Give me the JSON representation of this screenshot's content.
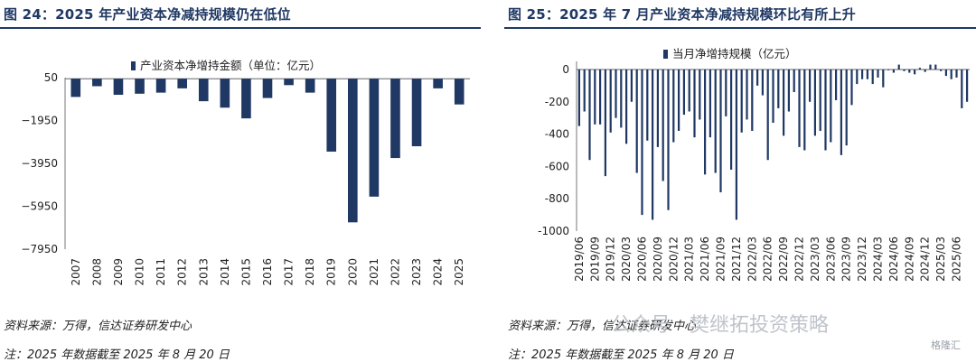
{
  "charts": [
    {
      "title": "图 24：2025 年产业资本净减持规模仍在低位",
      "source": "资料来源：万得，信达证券研发中心",
      "note": "注：2025 年数据截至 2025 年 8 月 20 日"
    },
    {
      "title": "图 25：2025 年 7 月产业资本净减持规模环比有所上升",
      "source": "资料来源：万得，信达证券研发中心",
      "note": "注：2025 年数据截至 2025 年 8 月 20 日"
    }
  ],
  "watermark": {
    "account": "公众号 · 樊继拓投资策略",
    "logo": "格隆汇"
  },
  "colors": {
    "bar": "#1f3864",
    "axis": "#333333",
    "title": "#1f3864"
  },
  "chart_data": [
    {
      "type": "bar",
      "legend": "产业资本净增持金额（单位：亿元）",
      "legend_position": "top-center",
      "categories": [
        "2007",
        "2008",
        "2009",
        "2010",
        "2011",
        "2012",
        "2013",
        "2014",
        "2015",
        "2016",
        "2017",
        "2018",
        "2019",
        "2020",
        "2021",
        "2022",
        "2023",
        "2024",
        "2025"
      ],
      "values": [
        -850,
        -350,
        -750,
        -700,
        -650,
        -450,
        -1050,
        -1350,
        -1850,
        -900,
        -300,
        -650,
        -3400,
        -6700,
        -5500,
        -3700,
        -3150,
        -450,
        -1200
      ],
      "yticks": [
        50,
        -1950,
        -3950,
        -5950,
        -7950
      ],
      "ylim": [
        -7950,
        50
      ],
      "tick_labels": [
        "50",
        "−1950",
        "−3950",
        "−5950",
        "−7950"
      ],
      "grid": false
    },
    {
      "type": "bar",
      "legend": "当月净增持规模（亿元）",
      "legend_position": "top-center",
      "x_tick_labels": [
        "2019/06",
        "2019/09",
        "2019/12",
        "2020/03",
        "2020/06",
        "2020/09",
        "2020/12",
        "2021/03",
        "2021/06",
        "2021/09",
        "2021/12",
        "2022/03",
        "2022/06",
        "2022/09",
        "2022/12",
        "2023/03",
        "2023/06",
        "2023/09",
        "2023/12",
        "2024/03",
        "2024/06",
        "2024/09",
        "2024/12",
        "2025/03",
        "2025/06"
      ],
      "x": [
        "2019/06",
        "2019/07",
        "2019/08",
        "2019/09",
        "2019/10",
        "2019/11",
        "2019/12",
        "2020/01",
        "2020/02",
        "2020/03",
        "2020/04",
        "2020/05",
        "2020/06",
        "2020/07",
        "2020/08",
        "2020/09",
        "2020/10",
        "2020/11",
        "2020/12",
        "2021/01",
        "2021/02",
        "2021/03",
        "2021/04",
        "2021/05",
        "2021/06",
        "2021/07",
        "2021/08",
        "2021/09",
        "2021/10",
        "2021/11",
        "2021/12",
        "2022/01",
        "2022/02",
        "2022/03",
        "2022/04",
        "2022/05",
        "2022/06",
        "2022/07",
        "2022/08",
        "2022/09",
        "2022/10",
        "2022/11",
        "2022/12",
        "2023/01",
        "2023/02",
        "2023/03",
        "2023/04",
        "2023/05",
        "2023/06",
        "2023/07",
        "2023/08",
        "2023/09",
        "2023/10",
        "2023/11",
        "2023/12",
        "2024/01",
        "2024/02",
        "2024/03",
        "2024/04",
        "2024/05",
        "2024/06",
        "2024/07",
        "2024/08",
        "2024/09",
        "2024/10",
        "2024/11",
        "2024/12",
        "2025/01",
        "2025/02",
        "2025/03",
        "2025/04",
        "2025/05",
        "2025/06",
        "2025/07",
        "2025/08"
      ],
      "values": [
        -350,
        -260,
        -560,
        -340,
        -340,
        -660,
        -390,
        -300,
        -360,
        -460,
        -200,
        -640,
        -900,
        -440,
        -930,
        -480,
        -690,
        -870,
        -450,
        -380,
        -280,
        -260,
        -420,
        -310,
        -650,
        -420,
        -640,
        -760,
        -290,
        -620,
        -930,
        -390,
        -310,
        -380,
        -100,
        -160,
        -560,
        -330,
        -240,
        -410,
        -260,
        -140,
        -480,
        -500,
        -200,
        -410,
        -380,
        -500,
        -450,
        -190,
        -530,
        -470,
        -220,
        -90,
        -60,
        -60,
        -90,
        -50,
        -110,
        -5,
        -20,
        30,
        -10,
        -20,
        -30,
        10,
        -15,
        30,
        30,
        -10,
        -40,
        -60,
        -50,
        -240,
        -200
      ],
      "ylim": [
        -1000,
        50
      ],
      "yticks": [
        0,
        -200,
        -400,
        -600,
        -800,
        -1000
      ],
      "tick_labels": [
        "0",
        "-200",
        "-400",
        "-600",
        "-800",
        "-1000"
      ],
      "grid": false
    }
  ]
}
